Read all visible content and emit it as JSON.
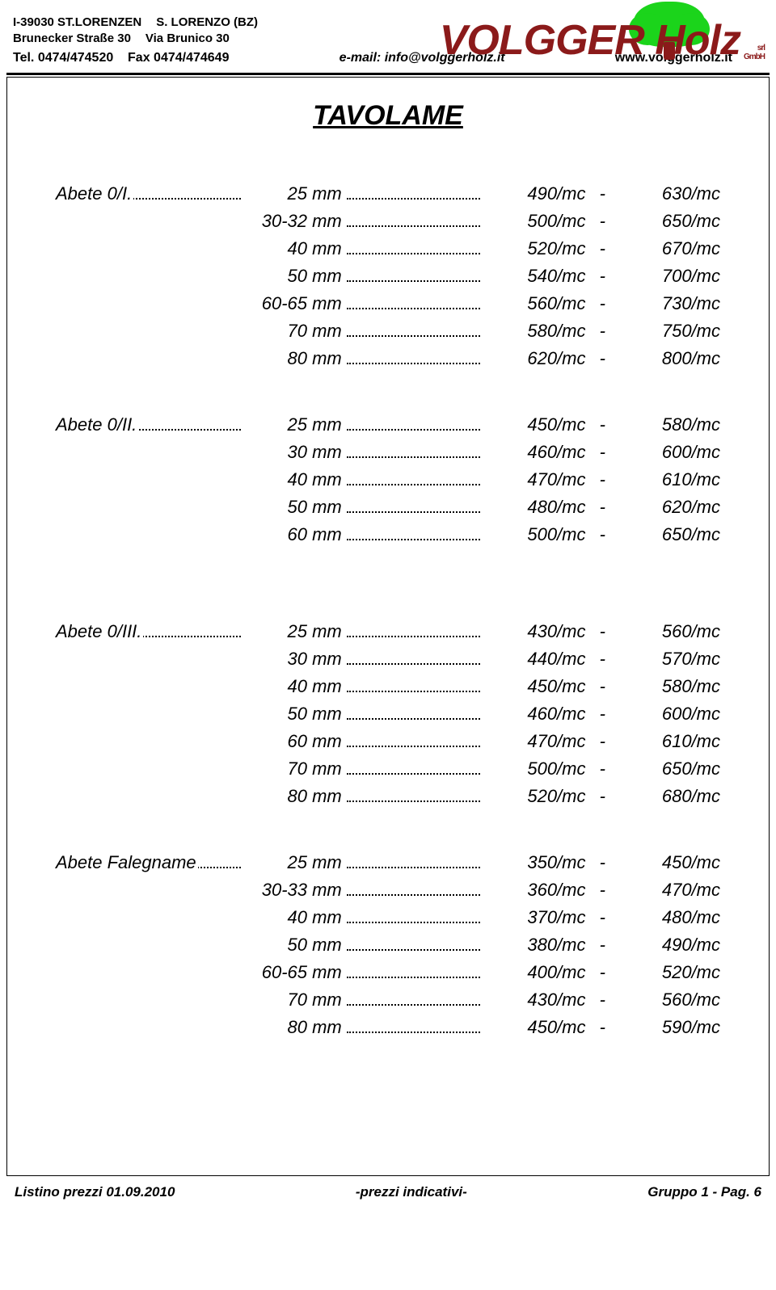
{
  "header": {
    "postal": "I-39030 ST.LORENZEN",
    "city": "S. LORENZO (BZ)",
    "street_de": "Brunecker Straße 30",
    "street_it": "Via Brunico 30",
    "tel_label": "Tel. 0474/474520",
    "fax_label": "Fax 0474/474649",
    "brand": "VOLGGER Holz",
    "brand_suffix1": "srl",
    "brand_suffix2": "GmbH",
    "email_label": "e-mail: info@volggerholz.it",
    "web": "www.volggerholz.it"
  },
  "title": "TAVOLAME",
  "colors": {
    "brand": "#8b1a1a",
    "tree": "#1bd41b"
  },
  "sections": [
    {
      "name": "Abete 0/I.",
      "rows": [
        {
          "thickness": "25 mm",
          "p1": "490/mc",
          "p2": "630/mc"
        },
        {
          "thickness": "30-32 mm",
          "p1": "500/mc",
          "p2": "650/mc"
        },
        {
          "thickness": "40 mm",
          "p1": "520/mc",
          "p2": "670/mc"
        },
        {
          "thickness": "50 mm",
          "p1": "540/mc",
          "p2": "700/mc"
        },
        {
          "thickness": "60-65 mm",
          "p1": "560/mc",
          "p2": "730/mc"
        },
        {
          "thickness": "70 mm",
          "p1": "580/mc",
          "p2": "750/mc"
        },
        {
          "thickness": "80 mm",
          "p1": "620/mc",
          "p2": "800/mc"
        }
      ],
      "gap_after": 1
    },
    {
      "name": "Abete 0/II.",
      "rows": [
        {
          "thickness": "25 mm",
          "p1": "450/mc",
          "p2": "580/mc"
        },
        {
          "thickness": "30 mm",
          "p1": "460/mc",
          "p2": "600/mc"
        },
        {
          "thickness": "40 mm",
          "p1": "470/mc",
          "p2": "610/mc"
        },
        {
          "thickness": "50 mm",
          "p1": "480/mc",
          "p2": "620/mc"
        },
        {
          "thickness": "60 mm",
          "p1": "500/mc",
          "p2": "650/mc"
        }
      ],
      "gap_after": 2
    },
    {
      "name": "Abete 0/III. ",
      "rows": [
        {
          "thickness": "25 mm",
          "p1": "430/mc",
          "p2": "560/mc"
        },
        {
          "thickness": "30 mm",
          "p1": "440/mc",
          "p2": "570/mc"
        },
        {
          "thickness": "40 mm",
          "p1": "450/mc",
          "p2": "580/mc"
        },
        {
          "thickness": "50 mm",
          "p1": "460/mc",
          "p2": "600/mc"
        },
        {
          "thickness": "60 mm",
          "p1": "470/mc",
          "p2": "610/mc"
        },
        {
          "thickness": "70 mm",
          "p1": "500/mc",
          "p2": "650/mc"
        },
        {
          "thickness": "80 mm",
          "p1": "520/mc",
          "p2": "680/mc"
        }
      ],
      "gap_after": 1
    },
    {
      "name": "Abete Falegname",
      "rows": [
        {
          "thickness": "25 mm",
          "p1": "350/mc",
          "p2": "450/mc"
        },
        {
          "thickness": "30-33 mm",
          "p1": "360/mc",
          "p2": "470/mc"
        },
        {
          "thickness": "40 mm",
          "p1": "370/mc",
          "p2": "480/mc"
        },
        {
          "thickness": "50 mm",
          "p1": "380/mc",
          "p2": "490/mc"
        },
        {
          "thickness": "60-65 mm",
          "p1": "400/mc",
          "p2": "520/mc"
        },
        {
          "thickness": "70 mm",
          "p1": "430/mc",
          "p2": "560/mc"
        },
        {
          "thickness": "80 mm",
          "p1": "450/mc",
          "p2": "590/mc"
        }
      ],
      "gap_after": 0
    }
  ],
  "footer": {
    "left": "Listino prezzi 01.09.2010",
    "mid": "-prezzi indicativi-",
    "right": "Gruppo 1 - Pag. 6"
  }
}
